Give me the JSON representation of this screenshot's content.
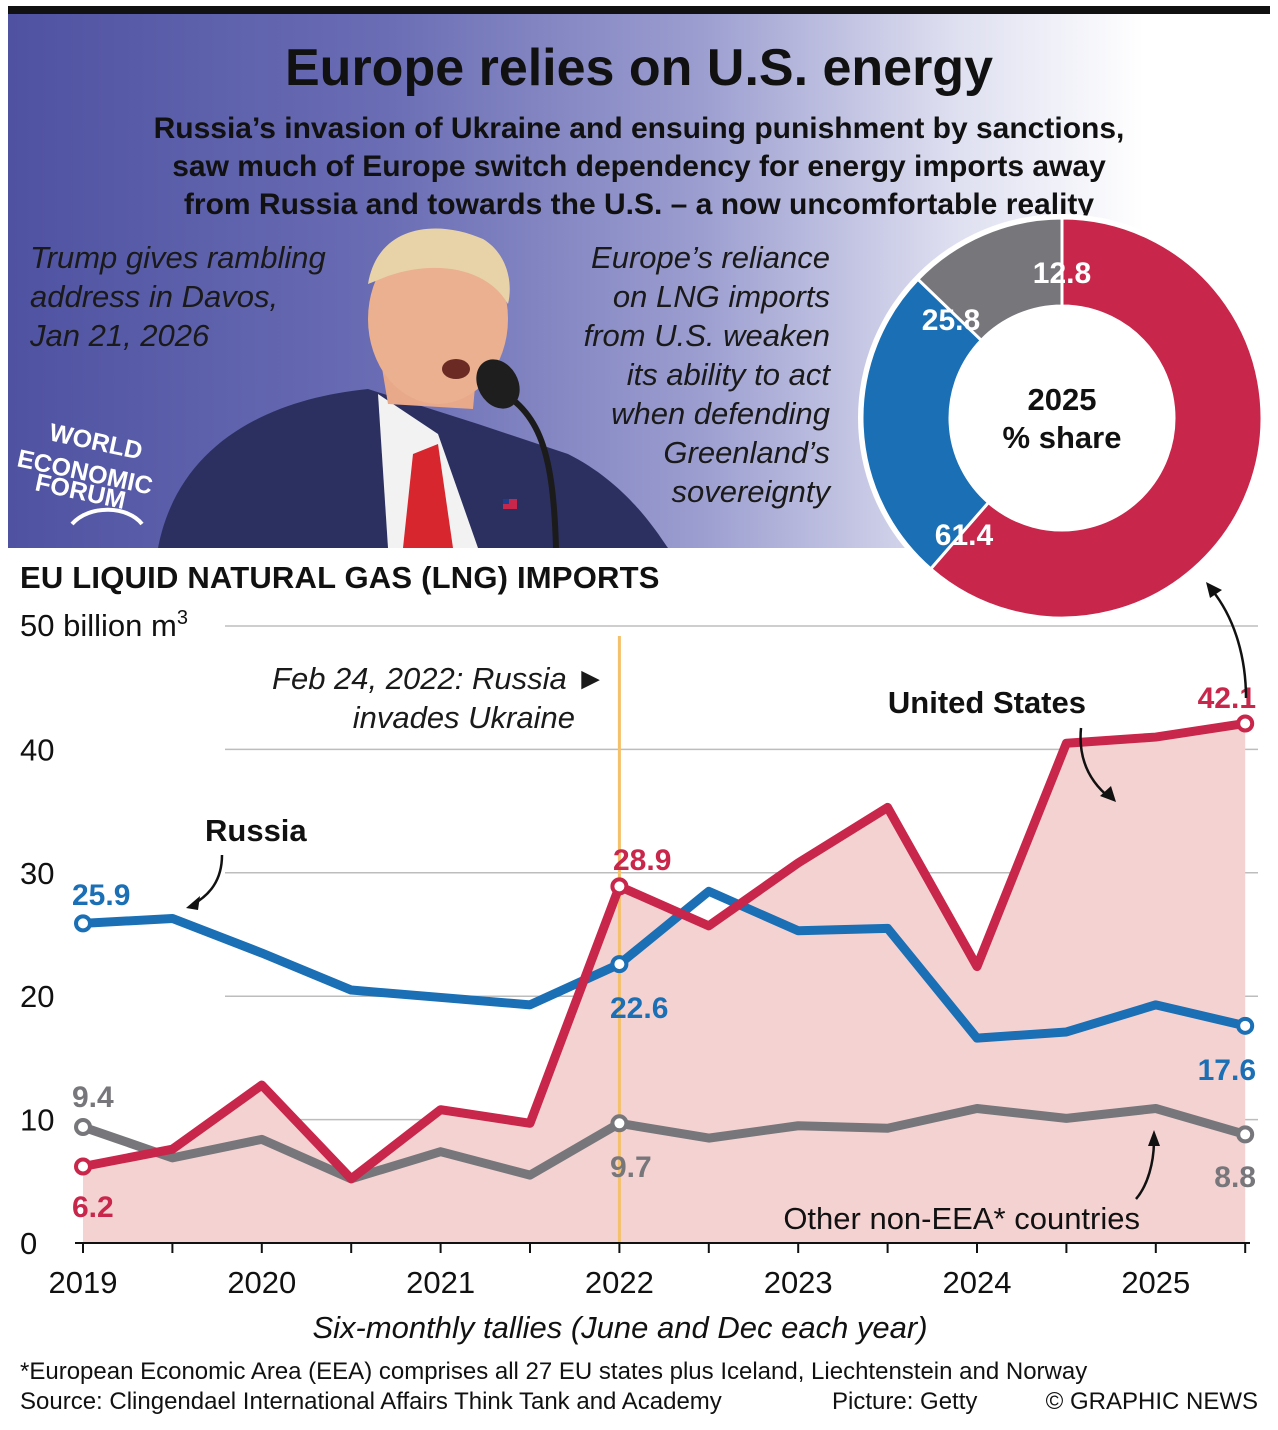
{
  "header": {
    "title": "Europe relies on U.S. energy",
    "subtitle_lines": [
      "Russia’s invasion of Ukraine and ensuing punishment by sanctions,",
      "saw much of Europe switch dependency for energy imports away",
      "from Russia and towards the U.S. – a now uncomfortable reality"
    ]
  },
  "photo": {
    "caption_lines": [
      "Trump gives rambling",
      "address in Davos,",
      "Jan 21, 2026"
    ],
    "logo_lines": [
      "WORLD",
      "ECONOMIC",
      "FORUM"
    ]
  },
  "annotation_right_lines": [
    "Europe’s reliance",
    "on LNG imports",
    "from U.S. weaken",
    "its ability to act",
    "when defending",
    "Greenland’s",
    "sovereignty"
  ],
  "colors": {
    "us": "#c8264a",
    "russia": "#1a6fb5",
    "other": "#77777b",
    "us_fill": "#f5d2d2",
    "event_line": "#f5c06a"
  },
  "donut": {
    "center_lines": [
      "2025",
      "% share"
    ],
    "slices": [
      {
        "name": "United States",
        "value": 61.4,
        "label": "61.4"
      },
      {
        "name": "Russia",
        "value": 25.8,
        "label": "25.8"
      },
      {
        "name": "Other non-EEA* countries",
        "value": 12.8,
        "label": "12.8"
      }
    ]
  },
  "chart_heading": "EU LIQUID NATURAL GAS (LNG) IMPORTS",
  "chart_data": [
    {
      "type": "line",
      "title": "EU LIQUID NATURAL GAS (LNG) IMPORTS",
      "ylabel": "billion m³",
      "top_tick_label": "50 billion m",
      "top_tick_sup": "3",
      "ylim": [
        0,
        50
      ],
      "yticks": [
        0,
        10,
        20,
        30,
        40,
        50
      ],
      "xlabel": "Six-monthly tallies (June and Dec each year)",
      "year_labels": [
        "2019",
        "2020",
        "2021",
        "2022",
        "2023",
        "2024",
        "2025"
      ],
      "x": [
        "Jun 2019",
        "Dec 2019",
        "Jun 2020",
        "Dec 2020",
        "Jun 2021",
        "Dec 2021",
        "Jun 2022",
        "Dec 2022",
        "Jun 2023",
        "Dec 2023",
        "Jun 2024",
        "Dec 2024",
        "Jun 2025",
        "Dec 2025"
      ],
      "grid": true,
      "series": [
        {
          "name": "Russia",
          "values": [
            25.9,
            26.3,
            23.5,
            20.5,
            19.9,
            19.3,
            22.6,
            28.5,
            25.3,
            25.5,
            16.6,
            17.1,
            19.3,
            17.6
          ]
        },
        {
          "name": "United States",
          "values": [
            6.2,
            7.6,
            12.8,
            5.2,
            10.8,
            9.7,
            28.9,
            25.7,
            30.8,
            35.3,
            22.4,
            40.5,
            41.0,
            42.1
          ]
        },
        {
          "name": "Other non-EEA* countries",
          "values": [
            9.4,
            6.9,
            8.4,
            5.2,
            7.4,
            5.5,
            9.7,
            8.5,
            9.5,
            9.3,
            10.9,
            10.1,
            10.9,
            8.8
          ]
        }
      ],
      "data_labels": {
        "russia_first": "25.9",
        "russia_2022": "22.6",
        "russia_last": "17.6",
        "us_first": "6.2",
        "us_2022": "28.9",
        "us_last": "42.1",
        "other_first": "9.4",
        "other_2022": "9.7",
        "other_last": "8.8"
      },
      "series_labels": {
        "russia": "Russia",
        "us": "United States",
        "other": "Other non-EEA* countries"
      },
      "event": {
        "date": "Jun 2022",
        "lines": [
          "Feb 24, 2022: Russia ►",
          "invades Ukraine"
        ]
      }
    }
  ],
  "footer": {
    "footnote": "*European Economic Area (EEA) comprises all 27 EU states plus Iceland, Liechtenstein and Norway",
    "source": "Source: Clingendael International Affairs Think Tank and Academy",
    "credit": "Picture: Getty",
    "copyright": "© GRAPHIC NEWS"
  }
}
